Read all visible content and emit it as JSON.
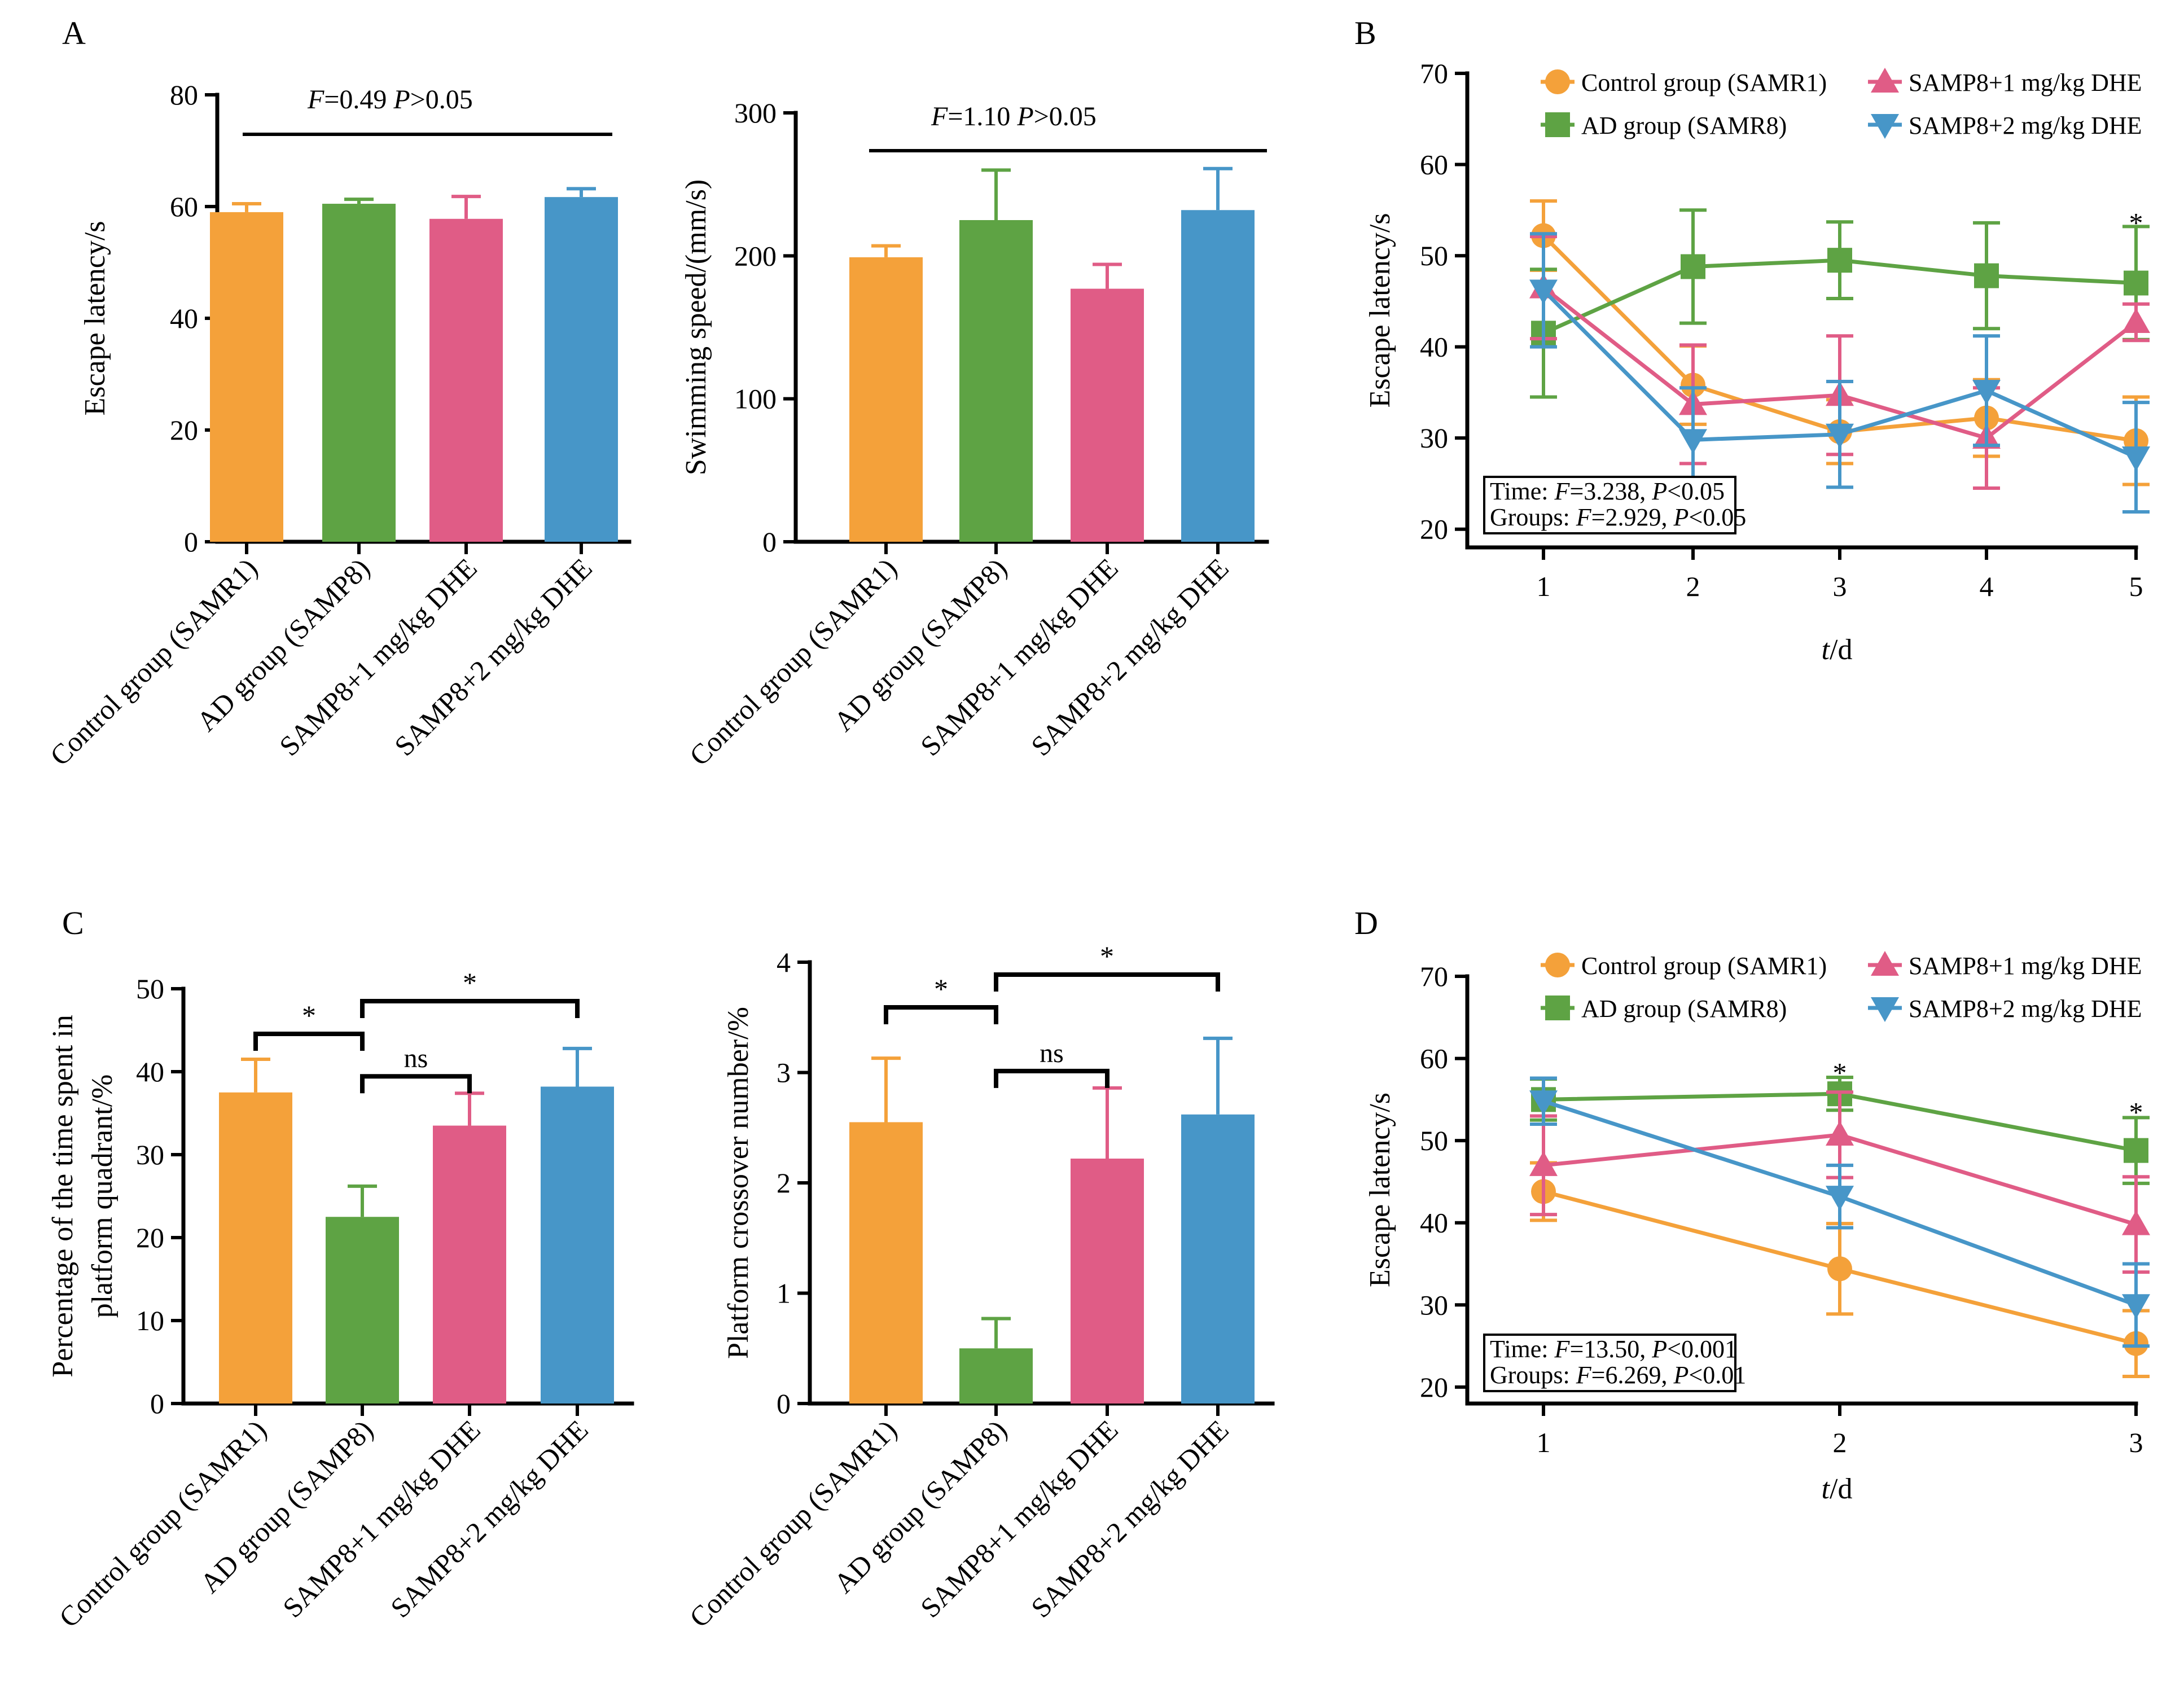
{
  "colors": {
    "control": "#F4A13A",
    "ad": "#5EA344",
    "dhe1": "#E05C86",
    "dhe2": "#4796C8"
  },
  "panel_labels": {
    "A": "A",
    "B": "B",
    "C": "C",
    "D": "D"
  },
  "chart_data": [
    {
      "id": "A1",
      "type": "bar",
      "panel": "A",
      "categories": [
        "Control group (SAMR1)",
        "AD group (SAMP8)",
        "SAMP8+1 mg/kg DHE",
        "SAMP8+2 mg/kg DHE"
      ],
      "values": [
        59,
        60.5,
        57.8,
        61.7
      ],
      "errors": [
        1.5,
        0.8,
        4.0,
        1.5
      ],
      "ylabel": "Escape latency/s",
      "ylim": [
        0,
        80
      ],
      "yticks": [
        0,
        20,
        40,
        60,
        80
      ],
      "stat_f": "F",
      "stat_f_val": "=0.49",
      "stat_p": "P",
      "stat_p_val": ">0.05"
    },
    {
      "id": "A2",
      "type": "bar",
      "panel": "A",
      "categories": [
        "Control group (SAMR1)",
        "AD group (SAMP8)",
        "SAMP8+1 mg/kg DHE",
        "SAMP8+2 mg/kg DHE"
      ],
      "values": [
        199,
        225,
        177,
        232
      ],
      "errors": [
        8,
        35,
        17,
        29
      ],
      "ylabel": "Swimming speed/(mm/s)",
      "ylim": [
        0,
        300
      ],
      "yticks": [
        0,
        100,
        200,
        300
      ],
      "stat_f": "F",
      "stat_f_val": "=1.10",
      "stat_p": "P",
      "stat_p_val": ">0.05"
    },
    {
      "id": "B",
      "type": "line",
      "panel": "B",
      "x": [
        1,
        2,
        3,
        4,
        5
      ],
      "series": [
        {
          "name": "Control group (SAMR1)",
          "values": [
            52.2,
            35.8,
            30.7,
            32.2,
            29.7
          ],
          "errors": [
            3.8,
            4.3,
            3.5,
            4.2,
            4.8
          ]
        },
        {
          "name": "AD group (SAMR8)",
          "values": [
            41.5,
            48.8,
            49.5,
            47.8,
            47.0
          ],
          "errors": [
            7.0,
            6.2,
            4.2,
            5.8,
            6.2
          ]
        },
        {
          "name": "SAMP8+1 mg/kg DHE",
          "values": [
            46.5,
            33.7,
            34.7,
            30.0,
            42.7
          ],
          "errors": [
            5.6,
            6.5,
            6.5,
            5.5,
            2.0
          ]
        },
        {
          "name": "SAMP8+2 mg/kg DHE",
          "values": [
            46.2,
            29.8,
            30.4,
            35.2,
            27.9
          ],
          "errors": [
            6.2,
            5.7,
            5.8,
            6.0,
            6.0
          ]
        }
      ],
      "ylabel": "Escape latency/s",
      "xlabel_italic": "t",
      "xlabel_rest": "/d",
      "ylim": [
        18,
        70
      ],
      "yticks": [
        20,
        30,
        40,
        50,
        60,
        70
      ],
      "stars": [
        {
          "x": 5,
          "y": 53.2,
          "text": "*"
        }
      ],
      "stat_lines": [
        {
          "pre": "Time: ",
          "f": "F",
          "fval": "=3.238, ",
          "p": "P",
          "pval": "<0.05"
        },
        {
          "pre": "Groups: ",
          "f": "F",
          "fval": "=2.929, ",
          "p": "P",
          "pval": "<0.05"
        }
      ]
    },
    {
      "id": "C1",
      "type": "bar",
      "panel": "C",
      "categories": [
        "Control group (SAMR1)",
        "AD group (SAMP8)",
        "SAMP8+1 mg/kg DHE",
        "SAMP8+2 mg/kg DHE"
      ],
      "values": [
        37.5,
        22.5,
        33.5,
        38.2
      ],
      "errors": [
        4.0,
        3.7,
        3.9,
        4.6
      ],
      "ylabel_line1": "Percentage of the time spent in",
      "ylabel_line2": "platform quadrant/%",
      "ylim": [
        0,
        50
      ],
      "yticks": [
        0,
        10,
        20,
        30,
        40,
        50
      ],
      "brackets": [
        {
          "from": 0,
          "to": 1,
          "label": "*"
        },
        {
          "from": 1,
          "to": 2,
          "label": "ns"
        },
        {
          "from": 1,
          "to": 3,
          "label": "*"
        }
      ]
    },
    {
      "id": "C2",
      "type": "bar",
      "panel": "C",
      "categories": [
        "Control group (SAMR1)",
        "AD group (SAMP8)",
        "SAMP8+1 mg/kg DHE",
        "SAMP8+2 mg/kg DHE"
      ],
      "values": [
        2.55,
        0.5,
        2.22,
        2.62
      ],
      "errors": [
        0.58,
        0.27,
        0.64,
        0.69
      ],
      "ylabel": "Platform crossover number/%",
      "ylim": [
        0,
        4
      ],
      "yticks": [
        0,
        1,
        2,
        3,
        4
      ],
      "brackets": [
        {
          "from": 0,
          "to": 1,
          "label": "*"
        },
        {
          "from": 1,
          "to": 2,
          "label": "ns"
        },
        {
          "from": 1,
          "to": 3,
          "label": "*"
        }
      ]
    },
    {
      "id": "D",
      "type": "line",
      "panel": "D",
      "x": [
        1,
        2,
        3
      ],
      "series": [
        {
          "name": "Control group (SAMR1)",
          "values": [
            43.8,
            34.4,
            25.3
          ],
          "errors": [
            3.5,
            5.5,
            4.0
          ]
        },
        {
          "name": "AD group (SAMR8)",
          "values": [
            55.0,
            55.7,
            48.8
          ],
          "errors": [
            2.5,
            2.0,
            4.0
          ]
        },
        {
          "name": "SAMP8+1 mg/kg DHE",
          "values": [
            47.0,
            50.7,
            39.8
          ],
          "errors": [
            6.0,
            5.2,
            5.8
          ]
        },
        {
          "name": "SAMP8+2 mg/kg DHE",
          "values": [
            54.8,
            43.2,
            30.0
          ],
          "errors": [
            2.8,
            3.8,
            5.0
          ]
        }
      ],
      "ylabel": "Escape latency/s",
      "xlabel_italic": "t",
      "xlabel_rest": "/d",
      "ylim": [
        18,
        70
      ],
      "yticks": [
        20,
        30,
        40,
        50,
        60,
        70
      ],
      "stars": [
        {
          "x": 2,
          "y": 57.8,
          "text": "*"
        },
        {
          "x": 3,
          "y": 53.0,
          "text": "*"
        }
      ],
      "stat_lines": [
        {
          "pre": "Time: ",
          "f": "F",
          "fval": "=13.50, ",
          "p": "P",
          "pval": "<0.001"
        },
        {
          "pre": "Groups: ",
          "f": "F",
          "fval": "=6.269, ",
          "p": "P",
          "pval": "<0.01"
        }
      ]
    }
  ]
}
